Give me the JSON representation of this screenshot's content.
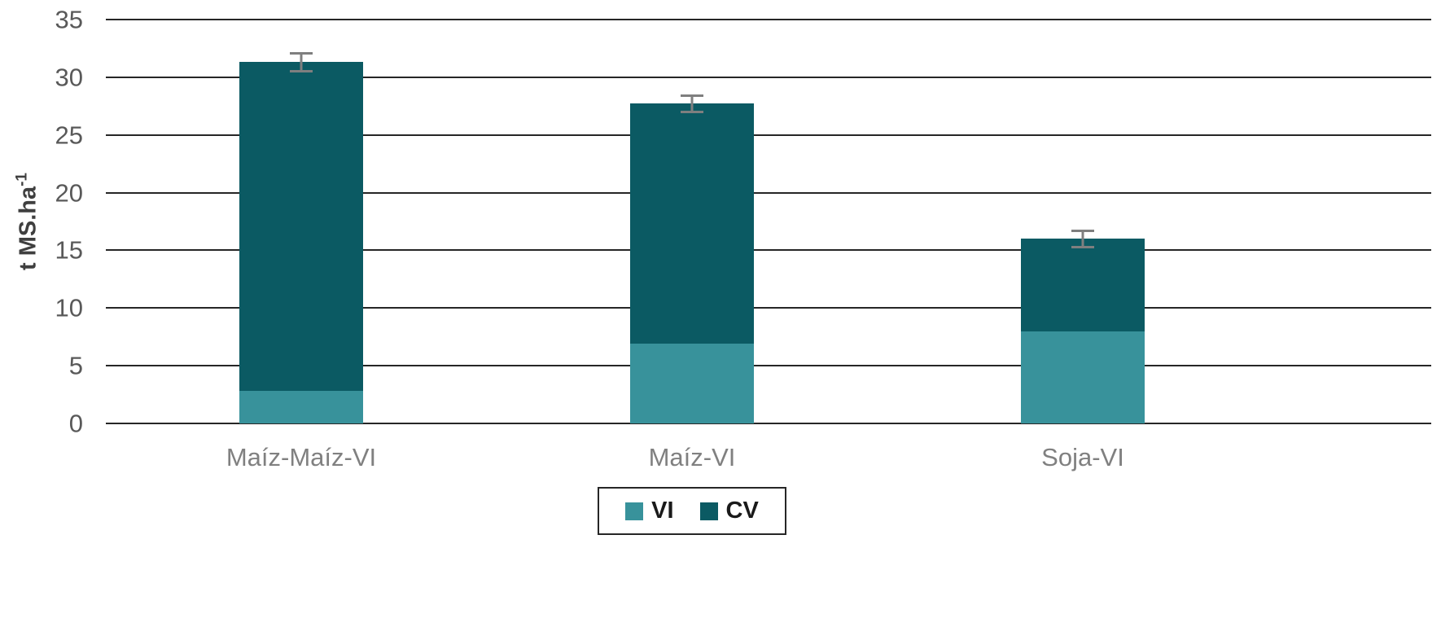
{
  "chart_data": {
    "type": "stacked-bar",
    "title": "",
    "ylabel": "t MS.ha",
    "ylabel_superscript": "-1",
    "xlabel": "",
    "ylim": [
      0,
      35
    ],
    "yticks": [
      0,
      5,
      10,
      15,
      20,
      25,
      30,
      35
    ],
    "grid": true,
    "legend_position": "bottom",
    "categories": [
      "Maíz-Maíz-VI",
      "Maíz-VI",
      "Soja-VI"
    ],
    "series": [
      {
        "name": "VI",
        "color": "#38929B",
        "values": [
          2.8,
          6.9,
          8.0
        ]
      },
      {
        "name": "CV",
        "color": "#0B5A63",
        "values": [
          28.5,
          20.8,
          8.0
        ]
      }
    ],
    "stack_totals": [
      31.3,
      27.7,
      16.0
    ],
    "error_bars": [
      0.9,
      0.8,
      0.8
    ],
    "colors": {
      "gridline": "#262626",
      "tick_label": "#595959",
      "category_label": "#808080",
      "error_bar": "#7F7F7F",
      "legend_border": "#262626"
    }
  }
}
